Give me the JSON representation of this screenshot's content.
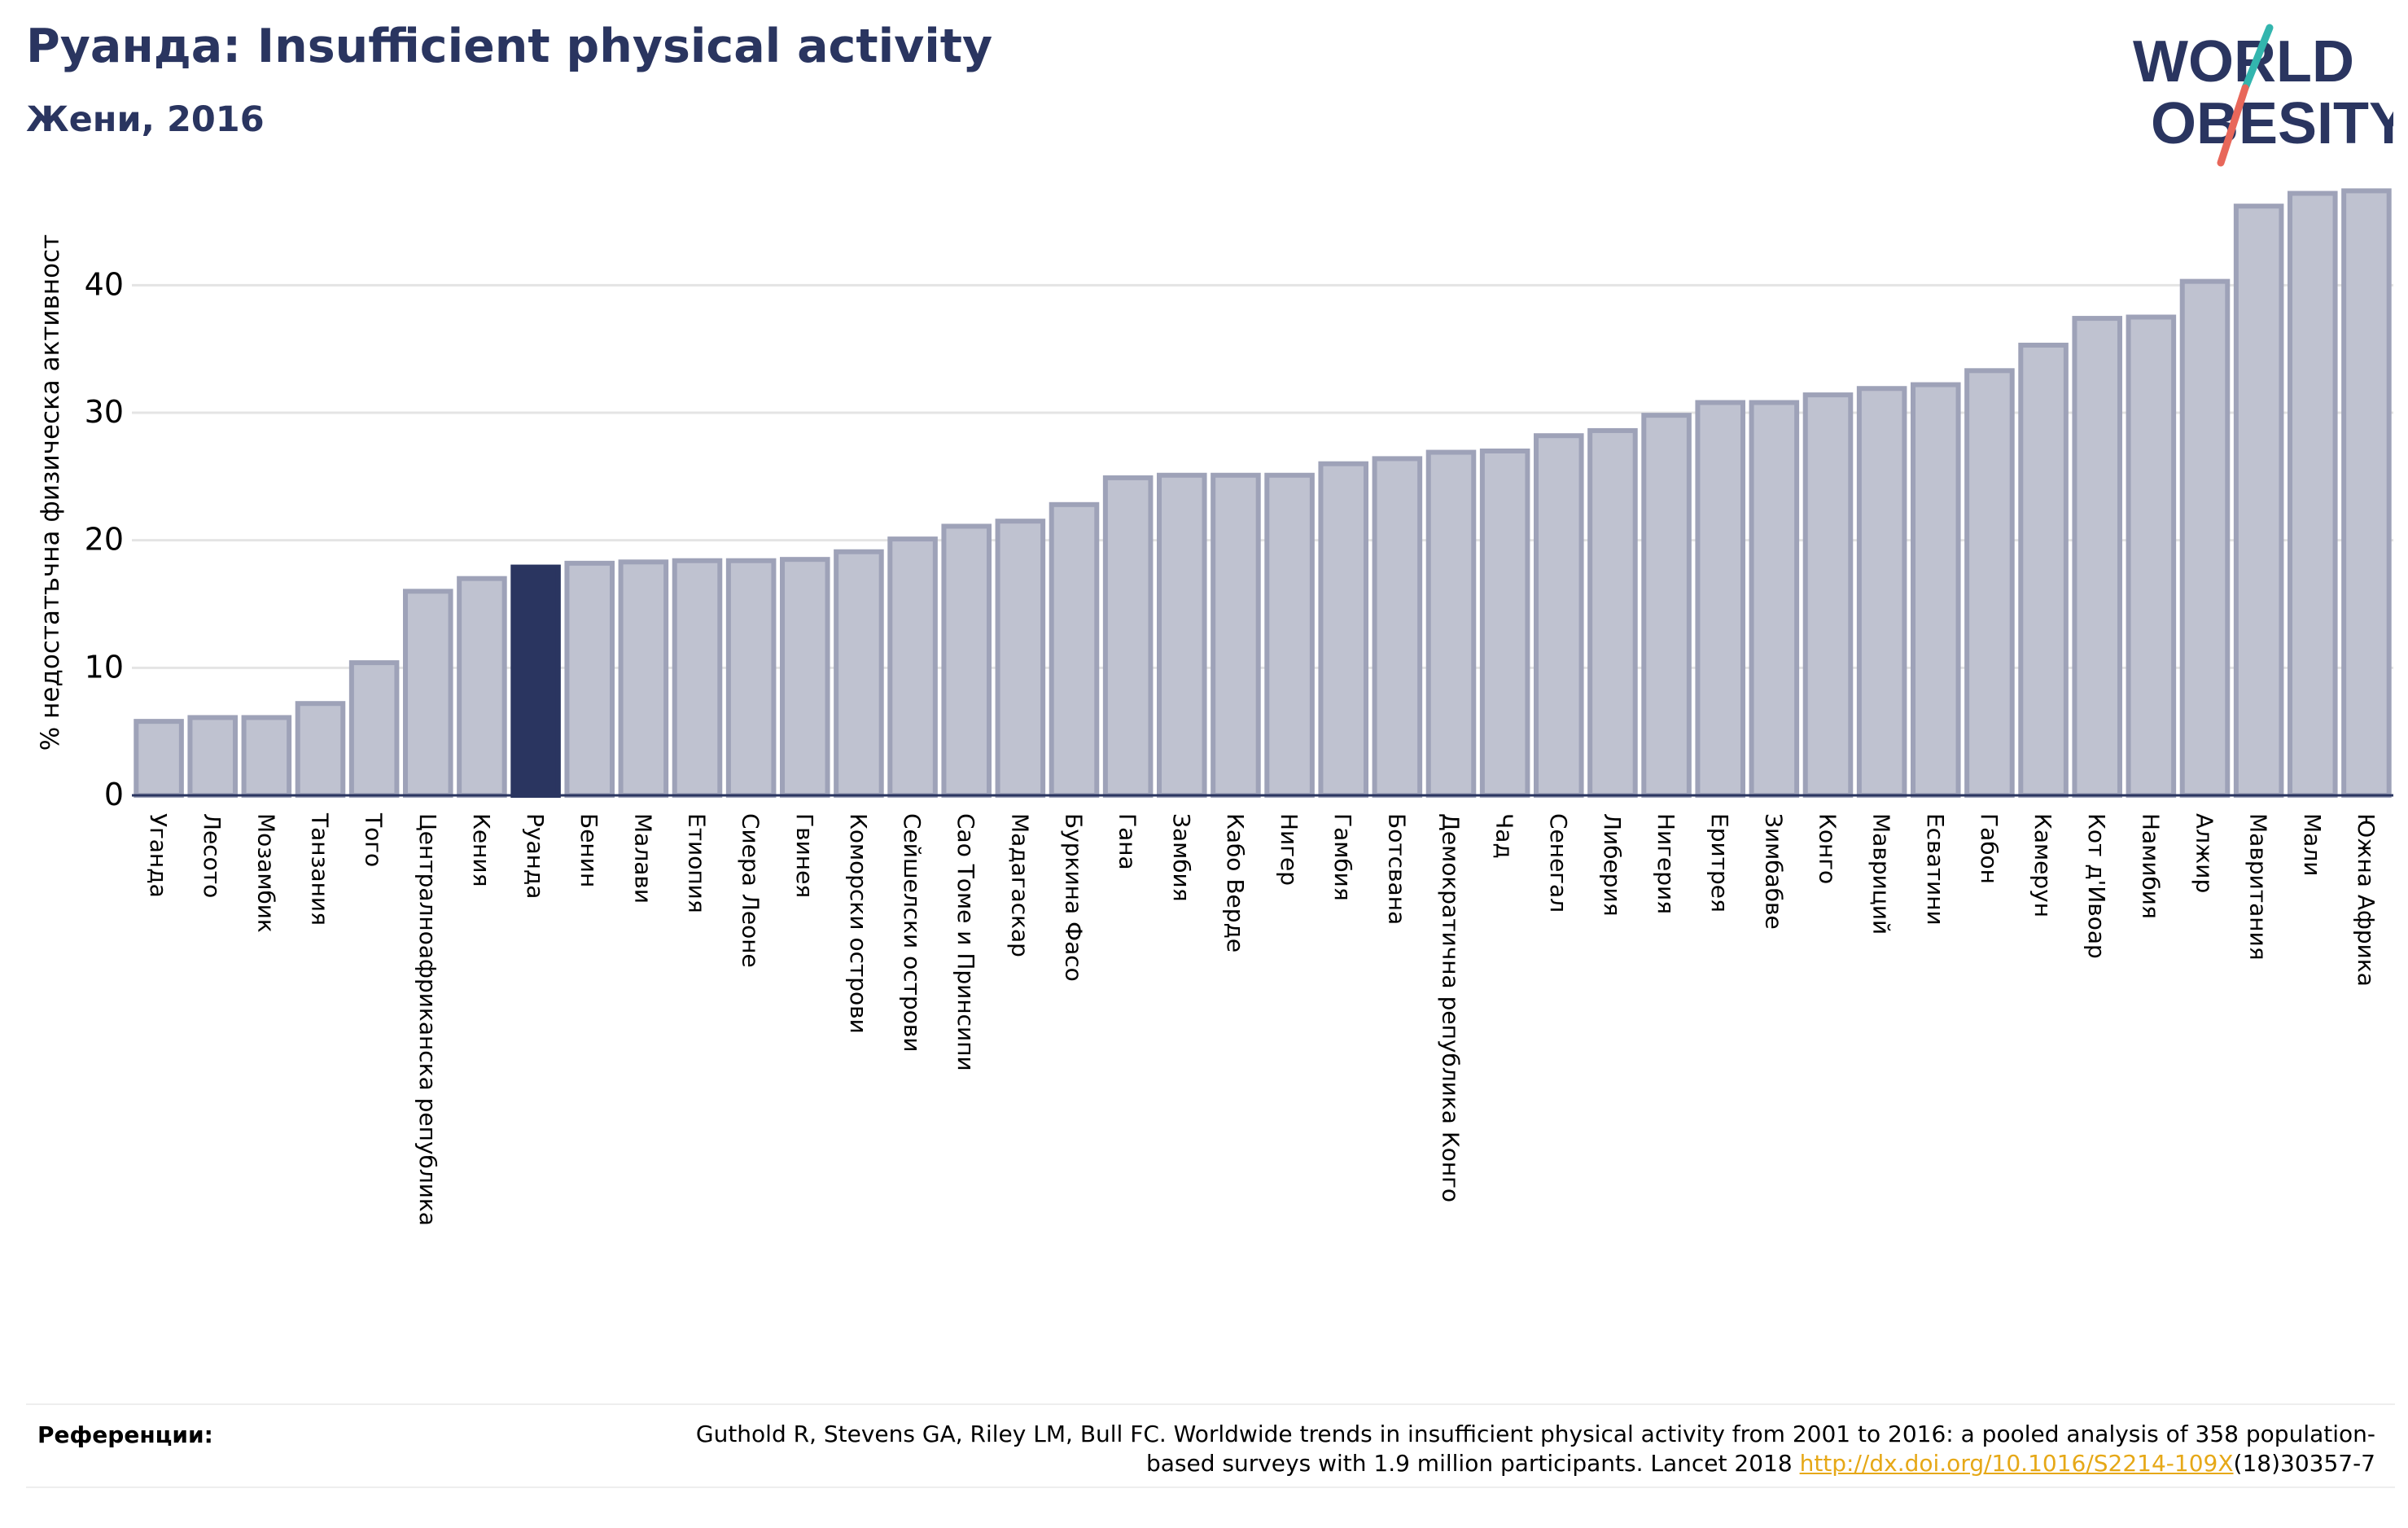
{
  "header": {
    "title": "Руанда: Insufficient physical activity",
    "subtitle": "Жени, 2016"
  },
  "logo": {
    "line1": "WORLD",
    "line2": "OBESITY",
    "text_color": "#2a3560",
    "slash_top_color": "#33b5ae",
    "slash_bottom_color": "#e8675a"
  },
  "chart_data": {
    "type": "bar",
    "title": "Руанда: Insufficient physical activity",
    "subtitle": "Жени, 2016",
    "ylabel": "% недостатъчна физическа активност",
    "xlabel": "",
    "ylim": [
      0,
      48
    ],
    "yticks": [
      0,
      10,
      20,
      30,
      40
    ],
    "grid": true,
    "highlight": "Руанда",
    "colors": {
      "default": "#bfc2d0",
      "default_border": "#9ea2b8",
      "highlight": "#2a3560"
    },
    "categories": [
      "Уганда",
      "Лесото",
      "Мозамбик",
      "Танзания",
      "Того",
      "Централноафриканска република",
      "Кения",
      "Руанда",
      "Бенин",
      "Малави",
      "Етиопия",
      "Сиера Леоне",
      "Гвинея",
      "Коморски острови",
      "Сейшелски острови",
      "Сао Томе и Принсипи",
      "Мадагаскар",
      "Буркина Фасо",
      "Гана",
      "Замбия",
      "Кабо Верде",
      "Нигер",
      "Гамбия",
      "Ботсвана",
      "Демократична република Конго",
      "Чад",
      "Сенегал",
      "Либерия",
      "Нигерия",
      "Еритрея",
      "Зимбабве",
      "Конго",
      "Мавриций",
      "Есватини",
      "Габон",
      "Камерун",
      "Кот д'Ивоар",
      "Намибия",
      "Алжир",
      "Мавритания",
      "Мали",
      "Южна Африка"
    ],
    "values": [
      5.8,
      6.1,
      6.1,
      7.2,
      10.4,
      16.0,
      17.0,
      17.9,
      18.2,
      18.3,
      18.4,
      18.4,
      18.5,
      19.1,
      20.1,
      21.1,
      21.5,
      22.8,
      24.9,
      25.1,
      25.1,
      25.1,
      26.0,
      26.4,
      26.9,
      27.0,
      28.2,
      28.6,
      29.8,
      30.8,
      30.8,
      31.4,
      31.9,
      32.2,
      33.3,
      35.3,
      37.4,
      37.5,
      40.3,
      46.2,
      47.2,
      47.4
    ]
  },
  "footer": {
    "ref_label": "Референции:",
    "ref_text": "Guthold R, Stevens GA, Riley LM, Bull FC. Worldwide trends in insufficient physical activity from 2001 to 2016: a pooled analysis of 358 population-based surveys with 1.9 million participants. Lancet 2018",
    "ref_link": "http://dx.doi.org/10.1016/S2214-109X",
    "ref_suffix": "(18)30357-7"
  }
}
